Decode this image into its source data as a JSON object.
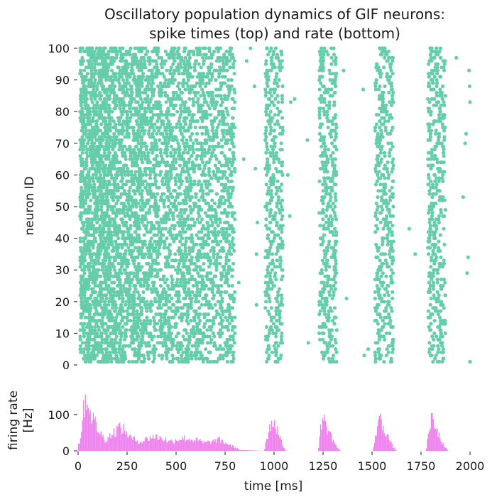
{
  "chart_data": [
    {
      "type": "scatter",
      "title_line1": "Oscillatory population dynamics of GIF neurons:",
      "title_line2": "spike times (top) and rate (bottom)",
      "ylabel": "neuron ID",
      "ylim": [
        0,
        100
      ],
      "xlim": [
        0,
        2000
      ],
      "yticks": [
        0,
        10,
        20,
        30,
        40,
        50,
        60,
        70,
        80,
        90,
        100
      ],
      "grid": false,
      "color": "#66cdaa",
      "neurons": 100,
      "activity_profile": [
        {
          "start": 10,
          "end": 170,
          "spikes_per_neuron": 15
        },
        {
          "start": 170,
          "end": 330,
          "spikes_per_neuron": 12
        },
        {
          "start": 330,
          "end": 560,
          "spikes_per_neuron": 13
        },
        {
          "start": 560,
          "end": 800,
          "spikes_per_neuron": 12
        },
        {
          "start": 955,
          "end": 1045,
          "spikes_per_neuron": 4
        },
        {
          "start": 1230,
          "end": 1320,
          "spikes_per_neuron": 4
        },
        {
          "start": 1515,
          "end": 1610,
          "spikes_per_neuron": 4
        },
        {
          "start": 1785,
          "end": 1875,
          "spikes_per_neuron": 4
        }
      ],
      "sparse_spikes": [
        {
          "t": 820,
          "id": 26
        },
        {
          "t": 845,
          "id": 65
        },
        {
          "t": 860,
          "id": 96
        },
        {
          "t": 880,
          "id": 100
        },
        {
          "t": 900,
          "id": 88
        },
        {
          "t": 905,
          "id": 62
        },
        {
          "t": 910,
          "id": 19
        },
        {
          "t": 910,
          "id": 35
        },
        {
          "t": 915,
          "id": 45
        },
        {
          "t": 1070,
          "id": 60
        },
        {
          "t": 1080,
          "id": 47
        },
        {
          "t": 1085,
          "id": 83
        },
        {
          "t": 1105,
          "id": 84
        },
        {
          "t": 1170,
          "id": 71
        },
        {
          "t": 1175,
          "id": 7
        },
        {
          "t": 1355,
          "id": 93
        },
        {
          "t": 1370,
          "id": 21
        },
        {
          "t": 1460,
          "id": 3
        },
        {
          "t": 1480,
          "id": 5
        },
        {
          "t": 1455,
          "id": 87
        },
        {
          "t": 1690,
          "id": 43
        },
        {
          "t": 1720,
          "id": 35
        },
        {
          "t": 1930,
          "id": 97
        },
        {
          "t": 1965,
          "id": 53
        },
        {
          "t": 1975,
          "id": 70
        },
        {
          "t": 1980,
          "id": 73
        },
        {
          "t": 1985,
          "id": 29
        },
        {
          "t": 1990,
          "id": 34
        },
        {
          "t": 1995,
          "id": 93
        },
        {
          "t": 1998,
          "id": 88
        },
        {
          "t": 2000,
          "id": 83
        },
        {
          "t": 2000,
          "id": 1
        }
      ]
    },
    {
      "type": "bar",
      "ylabel_line1": "firing rate",
      "ylabel_line2": "[Hz]",
      "xlabel": "time [ms]",
      "xlim": [
        0,
        2000
      ],
      "ylim": [
        0,
        170
      ],
      "yticks": [
        0,
        100
      ],
      "xticks": [
        0,
        250,
        500,
        750,
        1000,
        1250,
        1500,
        1750,
        2000
      ],
      "grid": false,
      "color": "#ee82ee",
      "bin_width_ms": 5,
      "rate_profile": [
        {
          "t": 10,
          "hz": 25
        },
        {
          "t": 25,
          "hz": 100
        },
        {
          "t": 35,
          "hz": 135
        },
        {
          "t": 45,
          "hz": 150
        },
        {
          "t": 60,
          "hz": 110
        },
        {
          "t": 80,
          "hz": 85
        },
        {
          "t": 110,
          "hz": 50
        },
        {
          "t": 140,
          "hz": 30
        },
        {
          "t": 170,
          "hz": 45
        },
        {
          "t": 210,
          "hz": 65
        },
        {
          "t": 240,
          "hz": 55
        },
        {
          "t": 270,
          "hz": 35
        },
        {
          "t": 320,
          "hz": 25
        },
        {
          "t": 380,
          "hz": 40
        },
        {
          "t": 430,
          "hz": 35
        },
        {
          "t": 470,
          "hz": 25
        },
        {
          "t": 530,
          "hz": 35
        },
        {
          "t": 600,
          "hz": 30
        },
        {
          "t": 650,
          "hz": 22
        },
        {
          "t": 720,
          "hz": 30
        },
        {
          "t": 790,
          "hz": 12
        },
        {
          "t": 830,
          "hz": 2
        },
        {
          "t": 950,
          "hz": 0
        },
        {
          "t": 960,
          "hz": 30
        },
        {
          "t": 990,
          "hz": 85
        },
        {
          "t": 1010,
          "hz": 70
        },
        {
          "t": 1040,
          "hz": 20
        },
        {
          "t": 1060,
          "hz": 0
        },
        {
          "t": 1225,
          "hz": 0
        },
        {
          "t": 1235,
          "hz": 45
        },
        {
          "t": 1245,
          "hz": 95
        },
        {
          "t": 1275,
          "hz": 60
        },
        {
          "t": 1320,
          "hz": 10
        },
        {
          "t": 1340,
          "hz": 0
        },
        {
          "t": 1505,
          "hz": 0
        },
        {
          "t": 1515,
          "hz": 35
        },
        {
          "t": 1535,
          "hz": 90
        },
        {
          "t": 1560,
          "hz": 65
        },
        {
          "t": 1605,
          "hz": 12
        },
        {
          "t": 1625,
          "hz": 0
        },
        {
          "t": 1775,
          "hz": 0
        },
        {
          "t": 1785,
          "hz": 35
        },
        {
          "t": 1800,
          "hz": 90
        },
        {
          "t": 1825,
          "hz": 60
        },
        {
          "t": 1870,
          "hz": 10
        },
        {
          "t": 1890,
          "hz": 0
        },
        {
          "t": 2000,
          "hz": 0
        }
      ]
    }
  ]
}
